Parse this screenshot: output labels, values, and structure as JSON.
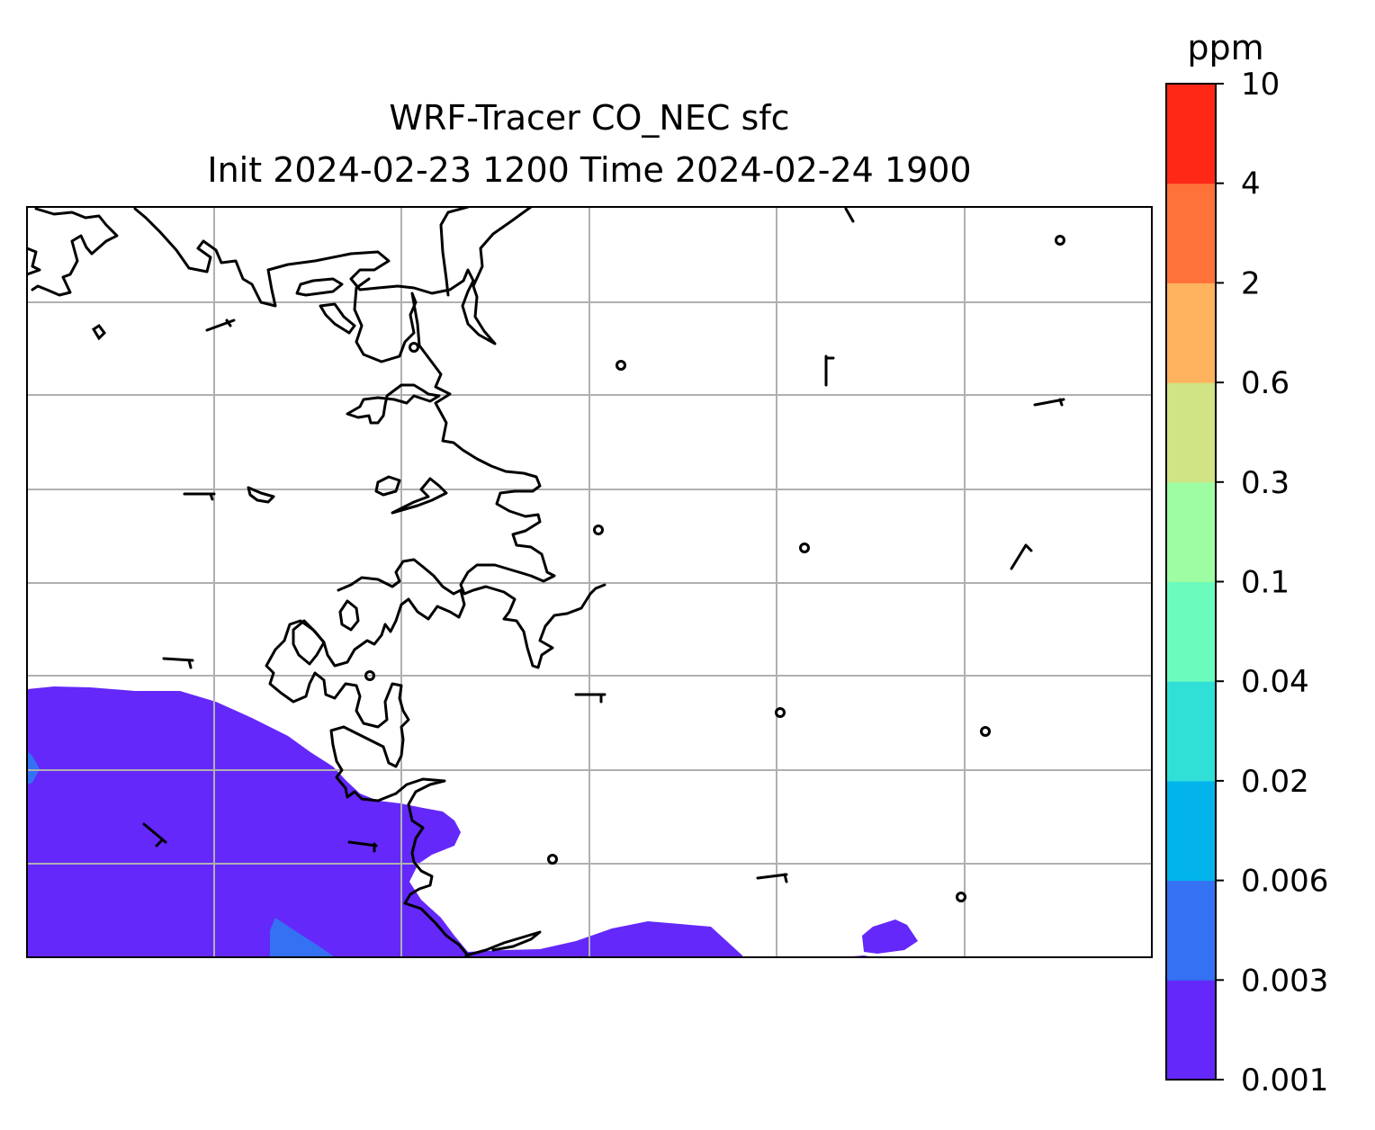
{
  "title": {
    "line1": "WRF-Tracer CO_NEC sfc",
    "line2": "Init 2024-02-23 1200 Time 2024-02-24 1900"
  },
  "colorbar": {
    "units": "ppm",
    "levels": [
      "0.001",
      "0.003",
      "0.006",
      "0.02",
      "0.04",
      "0.1",
      "0.3",
      "0.6",
      "2",
      "4",
      "10"
    ],
    "colors": [
      "#6428fa",
      "#3471f3",
      "#03b4ec",
      "#30e0d6",
      "#6bfcbd",
      "#9efda2",
      "#d0e385",
      "#ffb35e",
      "#ff723a",
      "#ff2715"
    ]
  },
  "map": {
    "fill_levels_present": [
      "0.001",
      "0.003"
    ],
    "gridline_color": "#b0b0b0",
    "coastline_color": "#000000",
    "ocean_color": "#ffffff"
  }
}
